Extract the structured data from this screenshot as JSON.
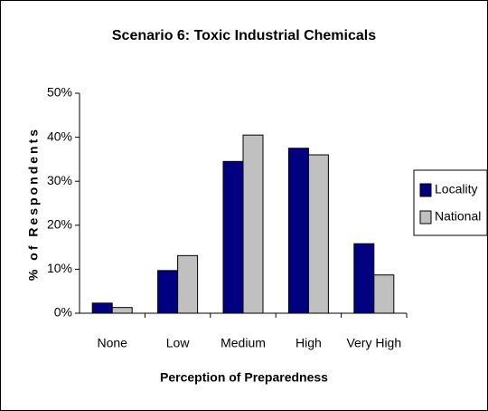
{
  "chart_data": {
    "type": "bar",
    "title": "Scenario 6: Toxic Industrial Chemicals",
    "x_label": "Perception of Preparedness",
    "y_label": "% of Respondents",
    "categories": [
      "None",
      "Low",
      "Medium",
      "High",
      "Very High"
    ],
    "series": [
      {
        "name": "Locality",
        "color": "#000080",
        "values": [
          2.3,
          9.7,
          34.5,
          37.5,
          15.8
        ]
      },
      {
        "name": "National",
        "color": "#c0c0c0",
        "values": [
          1.3,
          13.1,
          40.5,
          36,
          8.7
        ]
      }
    ],
    "ylim": [
      0,
      50
    ],
    "yticks": [
      {
        "value": 0,
        "label": "0%"
      },
      {
        "value": 10,
        "label": "10%"
      },
      {
        "value": 20,
        "label": "20%"
      },
      {
        "value": 30,
        "label": "30%"
      },
      {
        "value": 40,
        "label": "40%"
      },
      {
        "value": 50,
        "label": "50%"
      }
    ],
    "legend": "right"
  }
}
